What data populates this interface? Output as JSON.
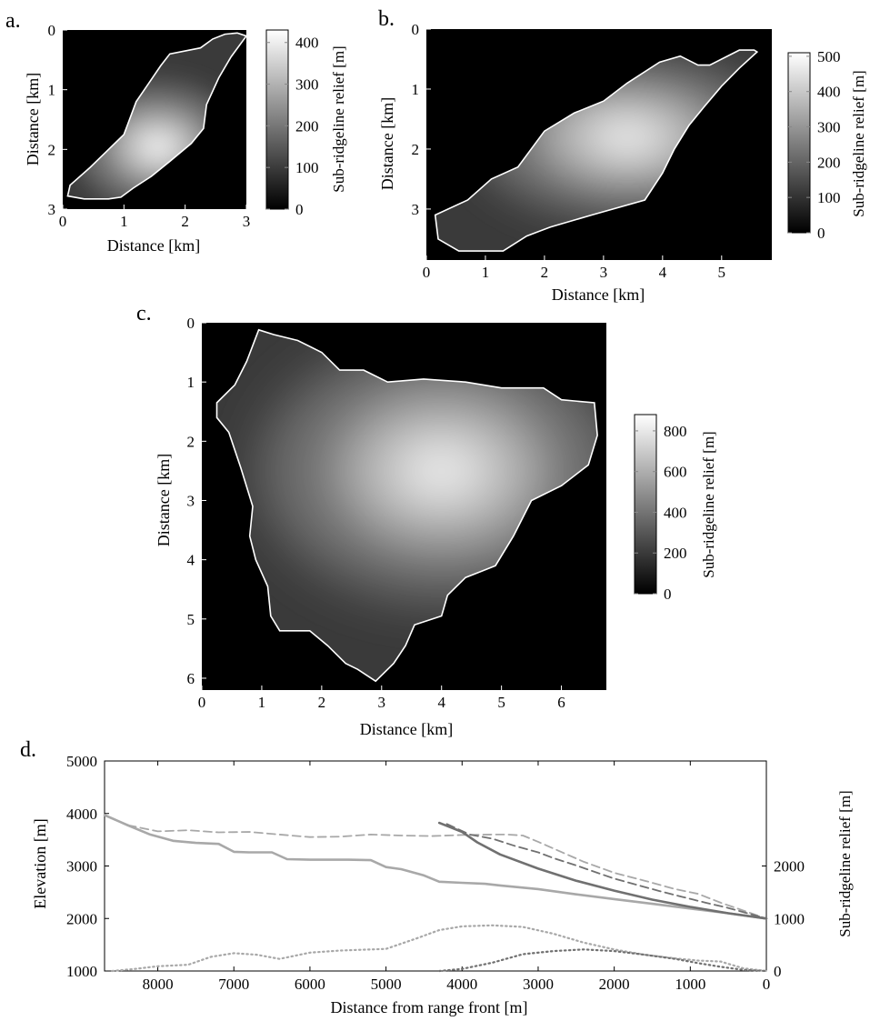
{
  "chart_data": [
    {
      "panel": "a.",
      "type": "heatmap",
      "xlabel": "Distance [km]",
      "ylabel": "Distance [km]",
      "xlim": [
        0,
        3
      ],
      "ylim": [
        0,
        3
      ],
      "x_ticks": [
        0,
        1,
        2,
        3
      ],
      "y_ticks": [
        0,
        1,
        2,
        3
      ],
      "y_reversed": true,
      "colorbar": {
        "label": "Sub-ridgeline relief [m]",
        "range": [
          0,
          430
        ],
        "ticks": [
          0,
          100,
          200,
          300,
          400
        ]
      },
      "colormap": [
        "#000000",
        "#ffffff"
      ],
      "outline_km": [
        [
          2.85,
          0.05
        ],
        [
          3.0,
          0.1
        ],
        [
          2.75,
          0.45
        ],
        [
          2.55,
          0.8
        ],
        [
          2.35,
          1.25
        ],
        [
          2.3,
          1.65
        ],
        [
          2.1,
          1.9
        ],
        [
          1.75,
          2.2
        ],
        [
          1.45,
          2.45
        ],
        [
          1.15,
          2.65
        ],
        [
          0.95,
          2.8
        ],
        [
          0.75,
          2.83
        ],
        [
          0.35,
          2.83
        ],
        [
          0.08,
          2.78
        ],
        [
          0.12,
          2.6
        ],
        [
          0.45,
          2.3
        ],
        [
          0.75,
          2.0
        ],
        [
          1.0,
          1.75
        ],
        [
          1.2,
          1.2
        ],
        [
          1.4,
          0.9
        ],
        [
          1.6,
          0.6
        ],
        [
          1.75,
          0.4
        ],
        [
          2.25,
          0.3
        ],
        [
          2.45,
          0.15
        ],
        [
          2.65,
          0.07
        ]
      ],
      "peak_km": [
        1.55,
        1.95
      ]
    },
    {
      "panel": "b.",
      "type": "heatmap",
      "xlabel": "Distance [km]",
      "ylabel": "Distance [km]",
      "xlim": [
        0,
        5.85
      ],
      "ylim": [
        0,
        3.85
      ],
      "x_ticks": [
        0,
        1,
        2,
        3,
        4,
        5
      ],
      "y_ticks": [
        0,
        1,
        2,
        3
      ],
      "y_reversed": true,
      "colorbar": {
        "label": "Sub-ridgeline relief [m]",
        "range": [
          0,
          510
        ],
        "ticks": [
          0,
          100,
          200,
          300,
          400,
          500
        ]
      },
      "colormap": [
        "#000000",
        "#ffffff"
      ],
      "outline_km": [
        [
          5.55,
          0.35
        ],
        [
          5.3,
          0.35
        ],
        [
          4.8,
          0.6
        ],
        [
          4.6,
          0.6
        ],
        [
          4.3,
          0.45
        ],
        [
          3.95,
          0.55
        ],
        [
          3.4,
          0.9
        ],
        [
          3.0,
          1.2
        ],
        [
          2.5,
          1.4
        ],
        [
          2.0,
          1.7
        ],
        [
          1.55,
          2.3
        ],
        [
          1.1,
          2.5
        ],
        [
          0.7,
          2.85
        ],
        [
          0.15,
          3.1
        ],
        [
          0.2,
          3.5
        ],
        [
          0.55,
          3.7
        ],
        [
          1.3,
          3.7
        ],
        [
          1.7,
          3.45
        ],
        [
          2.1,
          3.3
        ],
        [
          2.8,
          3.1
        ],
        [
          3.7,
          2.85
        ],
        [
          4.0,
          2.4
        ],
        [
          4.2,
          2.0
        ],
        [
          4.45,
          1.6
        ],
        [
          4.7,
          1.3
        ],
        [
          5.0,
          0.95
        ],
        [
          5.3,
          0.65
        ],
        [
          5.6,
          0.38
        ]
      ],
      "peak_km": [
        3.4,
        1.8
      ]
    },
    {
      "panel": "c.",
      "type": "heatmap",
      "xlabel": "Distance [km]",
      "ylabel": "Distance [km]",
      "xlim": [
        0,
        6.75
      ],
      "ylim": [
        0,
        6.2
      ],
      "x_ticks": [
        0,
        1,
        2,
        3,
        4,
        5,
        6
      ],
      "y_ticks": [
        0,
        1,
        2,
        3,
        4,
        5,
        6
      ],
      "y_reversed": true,
      "colorbar": {
        "label": "Sub-ridgeline relief [m]",
        "range": [
          0,
          880
        ],
        "ticks": [
          0,
          200,
          400,
          600,
          800
        ]
      },
      "colormap": [
        "#000000",
        "#ffffff"
      ],
      "outline_km": [
        [
          0.95,
          0.12
        ],
        [
          1.2,
          0.2
        ],
        [
          1.6,
          0.3
        ],
        [
          2.0,
          0.5
        ],
        [
          2.3,
          0.8
        ],
        [
          2.7,
          0.8
        ],
        [
          3.1,
          1.0
        ],
        [
          3.7,
          0.95
        ],
        [
          4.4,
          1.0
        ],
        [
          5.0,
          1.1
        ],
        [
          5.7,
          1.1
        ],
        [
          6.0,
          1.3
        ],
        [
          6.55,
          1.35
        ],
        [
          6.6,
          1.9
        ],
        [
          6.45,
          2.4
        ],
        [
          6.0,
          2.75
        ],
        [
          5.5,
          3.0
        ],
        [
          5.2,
          3.6
        ],
        [
          4.9,
          4.1
        ],
        [
          4.65,
          4.2
        ],
        [
          4.4,
          4.3
        ],
        [
          4.1,
          4.6
        ],
        [
          4.0,
          4.95
        ],
        [
          3.55,
          5.1
        ],
        [
          3.4,
          5.45
        ],
        [
          3.2,
          5.75
        ],
        [
          2.9,
          6.05
        ],
        [
          2.6,
          5.85
        ],
        [
          2.4,
          5.75
        ],
        [
          2.1,
          5.45
        ],
        [
          1.8,
          5.2
        ],
        [
          1.3,
          5.2
        ],
        [
          1.15,
          4.95
        ],
        [
          1.1,
          4.45
        ],
        [
          0.9,
          4.0
        ],
        [
          0.8,
          3.6
        ],
        [
          0.85,
          3.1
        ],
        [
          0.65,
          2.45
        ],
        [
          0.45,
          1.85
        ],
        [
          0.25,
          1.6
        ],
        [
          0.25,
          1.35
        ],
        [
          0.55,
          1.05
        ],
        [
          0.75,
          0.65
        ]
      ],
      "peak_km": [
        4.0,
        2.5
      ]
    },
    {
      "panel": "d.",
      "type": "line",
      "xlabel": "Distance from range front [m]",
      "ylabel": "Elevation [m]",
      "y2label": "Sub-ridgeline relief [m]",
      "xlim": [
        8700,
        0
      ],
      "ylim": [
        1000,
        5000
      ],
      "y2lim": [
        0,
        4000
      ],
      "x_ticks": [
        8000,
        7000,
        6000,
        5000,
        4000,
        3000,
        2000,
        1000,
        0
      ],
      "y_ticks": [
        1000,
        2000,
        3000,
        4000,
        5000
      ],
      "y2_ticks": [
        0,
        1000,
        2000
      ],
      "series": [
        {
          "style": "solid",
          "color": "#a8a8a8",
          "axis": "left",
          "x": [
            8700,
            8400,
            8100,
            7800,
            7500,
            7200,
            7000,
            6800,
            6500,
            6300,
            6000,
            5500,
            5200,
            5000,
            4800,
            4500,
            4300,
            4000,
            3700,
            3500,
            3000,
            2500,
            2000,
            1500,
            1000,
            500,
            0
          ],
          "y": [
            3970,
            3780,
            3600,
            3480,
            3440,
            3420,
            3270,
            3260,
            3260,
            3130,
            3120,
            3120,
            3110,
            2980,
            2940,
            2820,
            2700,
            2680,
            2660,
            2630,
            2560,
            2460,
            2370,
            2280,
            2190,
            2100,
            2000
          ]
        },
        {
          "style": "dashed",
          "color": "#a8a8a8",
          "axis": "left",
          "x": [
            8700,
            8400,
            8000,
            7600,
            7200,
            6800,
            6400,
            6000,
            5600,
            5200,
            4800,
            4400,
            4000,
            3600,
            3400,
            3200,
            3000,
            2700,
            2400,
            2000,
            1600,
            1200,
            900,
            600,
            300,
            0
          ],
          "y": [
            3970,
            3780,
            3660,
            3680,
            3640,
            3650,
            3600,
            3550,
            3560,
            3600,
            3580,
            3570,
            3590,
            3600,
            3600,
            3580,
            3460,
            3270,
            3080,
            2870,
            2720,
            2560,
            2470,
            2300,
            2150,
            2000
          ]
        },
        {
          "style": "solid",
          "color": "#707070",
          "axis": "left",
          "x": [
            4300,
            4000,
            3800,
            3500,
            3000,
            2500,
            2000,
            1500,
            1000,
            500,
            0
          ],
          "y": [
            3820,
            3650,
            3450,
            3220,
            2950,
            2720,
            2530,
            2360,
            2220,
            2100,
            2000
          ]
        },
        {
          "style": "dashed",
          "color": "#707070",
          "axis": "left",
          "x": [
            4200,
            3900,
            3600,
            3300,
            3000,
            2800,
            2500,
            2200,
            2000,
            1700,
            1400,
            1100,
            800,
            500,
            200,
            0
          ],
          "y": [
            3800,
            3600,
            3520,
            3380,
            3260,
            3150,
            3010,
            2860,
            2760,
            2640,
            2520,
            2410,
            2300,
            2200,
            2080,
            2000
          ]
        },
        {
          "style": "dotted",
          "color": "#a8a8a8",
          "axis": "right",
          "x": [
            8600,
            8300,
            8000,
            7600,
            7300,
            7000,
            6700,
            6400,
            6000,
            5600,
            5000,
            4600,
            4300,
            4000,
            3600,
            3200,
            2800,
            2400,
            2000,
            1600,
            1200,
            900,
            600,
            300,
            0
          ],
          "y": [
            0,
            40,
            90,
            120,
            270,
            340,
            310,
            230,
            350,
            390,
            420,
            620,
            780,
            850,
            870,
            840,
            710,
            540,
            410,
            310,
            240,
            200,
            180,
            50,
            0
          ]
        },
        {
          "style": "dotted",
          "color": "#707070",
          "axis": "right",
          "x": [
            4300,
            4000,
            3600,
            3200,
            2800,
            2400,
            2000,
            1600,
            1200,
            900,
            600,
            300,
            0
          ],
          "y": [
            0,
            40,
            160,
            320,
            380,
            410,
            380,
            310,
            230,
            150,
            80,
            20,
            0
          ]
        }
      ]
    }
  ]
}
